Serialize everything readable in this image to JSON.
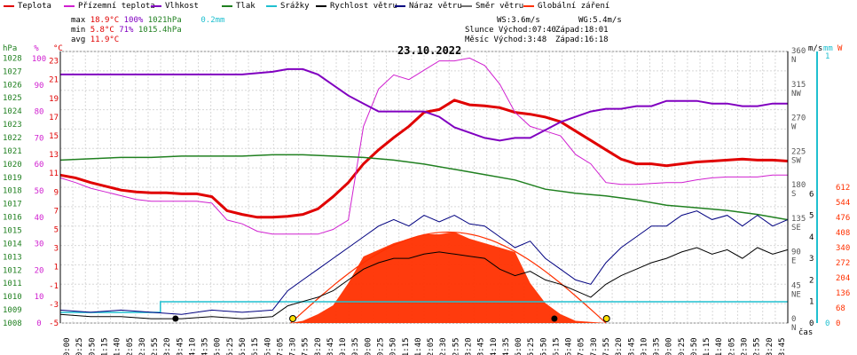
{
  "legend": [
    {
      "label": "Teplota",
      "color": "#e00000"
    },
    {
      "label": "Přízemní teplota",
      "color": "#d020d0"
    },
    {
      "label": "Vlhkost",
      "color": "#8000c0"
    },
    {
      "label": "Tlak",
      "color": "#208020"
    },
    {
      "label": "Srážky",
      "color": "#20c0d0"
    },
    {
      "label": "Rychlost větru",
      "color": "#000000"
    },
    {
      "label": "Náraz větru",
      "color": "#000080"
    },
    {
      "label": "Směr větru",
      "color": "#707070"
    },
    {
      "label": "Globální záření",
      "color": "#ff3000"
    }
  ],
  "stats": {
    "max_label": "max",
    "max_temp": "18.9°C",
    "max_hum": "100%",
    "max_press": "1021hPa",
    "max_rain": "0.2mm",
    "min_label": "min",
    "min_temp": "5.8°C",
    "min_hum": "71%",
    "min_press": "1015.4hPa",
    "avg_label": "avg",
    "avg_temp": "11.9°C",
    "ws": "WS:3.6m/s",
    "wg": "WG:5.4m/s",
    "sun_rise": "Slunce Východ:07:40",
    "sun_set": "Západ:18:01",
    "moon_rise": "Měsíc  Východ:3:48",
    "moon_set": "Západ:16:18"
  },
  "date_title": "23.10.2022",
  "axes": {
    "hpa_unit": "hPa",
    "pct_unit": "%",
    "c_unit": "°C",
    "ms_unit": "m/s",
    "mm_unit": "mm",
    "w_unit": "W",
    "time_unit": "čas",
    "hpa_ticks": [
      "1008",
      "1009",
      "1010",
      "1011",
      "1012",
      "1013",
      "1014",
      "1015",
      "1016",
      "1017",
      "1018",
      "1019",
      "1020",
      "1021",
      "1022",
      "1023",
      "1024",
      "1025",
      "1026",
      "1027",
      "1028"
    ],
    "pct_ticks": [
      "0",
      "10",
      "20",
      "30",
      "40",
      "50",
      "60",
      "70",
      "80",
      "90",
      "100"
    ],
    "c_ticks": [
      "-5",
      "-3",
      "-1",
      "1",
      "3",
      "5",
      "7",
      "9",
      "11",
      "13",
      "15",
      "17",
      "19",
      "21",
      "23"
    ],
    "c_ticks_extra": [
      "-1"
    ],
    "dir_ticks": [
      {
        "deg": "0",
        "name": "N"
      },
      {
        "deg": "45",
        "name": "NE"
      },
      {
        "deg": "90",
        "name": "E"
      },
      {
        "deg": "135",
        "name": "SE"
      },
      {
        "deg": "180",
        "name": "S"
      },
      {
        "deg": "225",
        "name": "SW"
      },
      {
        "deg": "270",
        "name": "W"
      },
      {
        "deg": "315",
        "name": "NW"
      },
      {
        "deg": "360",
        "name": "N"
      }
    ],
    "ms_ticks": [
      "0",
      "1",
      "2",
      "3",
      "4",
      "5",
      "6"
    ],
    "mm_ticks": [
      "0",
      "1"
    ],
    "w_ticks": [
      "0",
      "68",
      "136",
      "204",
      "272",
      "340",
      "408",
      "476",
      "544",
      "612"
    ],
    "time_ticks": [
      "00:00",
      "00:25",
      "00:50",
      "01:15",
      "01:40",
      "02:05",
      "02:30",
      "02:55",
      "03:20",
      "03:45",
      "04:10",
      "04:35",
      "05:00",
      "05:25",
      "05:50",
      "06:15",
      "06:40",
      "07:05",
      "07:30",
      "07:55",
      "08:20",
      "08:45",
      "09:10",
      "09:35",
      "10:00",
      "10:25",
      "10:50",
      "11:15",
      "11:40",
      "12:05",
      "12:30",
      "12:55",
      "13:20",
      "13:45",
      "14:10",
      "14:35",
      "15:00",
      "15:25",
      "15:50",
      "16:15",
      "16:40",
      "17:05",
      "17:30",
      "17:55",
      "18:20",
      "18:45",
      "19:10",
      "19:35",
      "20:00",
      "20:25",
      "20:50",
      "21:15",
      "21:40",
      "22:05",
      "22:30",
      "22:55",
      "23:20",
      "23:45"
    ]
  },
  "chart_data": {
    "type": "line",
    "title": "23.10.2022",
    "x_range_hours": [
      0,
      24
    ],
    "series": [
      {
        "name": "Teplota",
        "unit": "°C",
        "color": "#e00000",
        "x": [
          0,
          0.5,
          1,
          1.5,
          2,
          2.5,
          3,
          3.5,
          4,
          4.5,
          5,
          5.5,
          6,
          6.5,
          7,
          7.5,
          8,
          8.5,
          9,
          9.5,
          10,
          10.5,
          11,
          11.5,
          12,
          12.5,
          13,
          13.5,
          14,
          14.5,
          15,
          15.5,
          16,
          16.5,
          17,
          17.5,
          18,
          18.5,
          19,
          19.5,
          20,
          20.5,
          21,
          21.5,
          22,
          22.5,
          23,
          23.5,
          24
        ],
        "y": [
          10.8,
          10.5,
          10.0,
          9.6,
          9.2,
          9.0,
          8.9,
          8.9,
          8.8,
          8.8,
          8.5,
          7.0,
          6.6,
          6.3,
          6.3,
          6.4,
          6.6,
          7.2,
          8.5,
          10.0,
          12.0,
          13.5,
          14.8,
          16.0,
          17.5,
          17.8,
          18.8,
          18.3,
          18.2,
          18.0,
          17.5,
          17.3,
          17.0,
          16.5,
          15.5,
          14.5,
          13.5,
          12.5,
          12.0,
          12.0,
          11.8,
          12.0,
          12.2,
          12.3,
          12.4,
          12.5,
          12.4,
          12.4,
          12.3
        ]
      },
      {
        "name": "Přízemní teplota",
        "unit": "°C",
        "color": "#d020d0",
        "x": [
          0,
          0.5,
          1,
          1.5,
          2,
          2.5,
          3,
          3.5,
          4,
          4.5,
          5,
          5.5,
          6,
          6.5,
          7,
          7.5,
          8,
          8.5,
          9,
          9.5,
          10,
          10.5,
          11,
          11.5,
          12,
          12.5,
          13,
          13.5,
          14,
          14.5,
          15,
          15.5,
          16,
          16.5,
          17,
          17.5,
          18,
          18.5,
          19,
          19.5,
          20,
          20.5,
          21,
          21.5,
          22,
          22.5,
          23,
          23.5,
          24
        ],
        "y": [
          10.5,
          10.0,
          9.4,
          9.0,
          8.6,
          8.2,
          8.0,
          8.0,
          8.0,
          8.0,
          7.8,
          6.0,
          5.6,
          4.8,
          4.5,
          4.5,
          4.5,
          4.5,
          5.0,
          6.0,
          16.0,
          20.0,
          21.5,
          21.0,
          22.0,
          23.0,
          23.0,
          23.3,
          22.5,
          20.5,
          17.5,
          16.0,
          15.5,
          15.0,
          13.0,
          12.0,
          10.0,
          9.8,
          9.8,
          9.9,
          10.0,
          10.0,
          10.3,
          10.5,
          10.6,
          10.6,
          10.6,
          10.8,
          10.8
        ]
      },
      {
        "name": "Vlhkost",
        "unit": "%",
        "color": "#8000c0",
        "x": [
          0,
          1,
          2,
          3,
          4,
          5,
          6,
          7,
          7.5,
          8,
          8.5,
          9,
          9.5,
          10,
          10.5,
          11,
          11.5,
          12,
          12.5,
          13,
          13.5,
          14,
          14.5,
          15,
          15.5,
          16,
          16.5,
          17,
          17.5,
          18,
          18.5,
          19,
          19.5,
          20,
          20.5,
          21,
          21.5,
          22,
          22.5,
          23,
          23.5,
          24
        ],
        "y": [
          94,
          94,
          94,
          94,
          94,
          94,
          94,
          95,
          96,
          96,
          94,
          90,
          86,
          83,
          80,
          80,
          80,
          80,
          78,
          74,
          72,
          70,
          69,
          70,
          70,
          73,
          76,
          78,
          80,
          81,
          81,
          82,
          82,
          84,
          84,
          84,
          83,
          83,
          82,
          82,
          83,
          83
        ]
      },
      {
        "name": "Tlak",
        "unit": "hPa",
        "color": "#208020",
        "x": [
          0,
          1,
          2,
          3,
          4,
          5,
          6,
          7,
          8,
          9,
          10,
          11,
          12,
          13,
          14,
          15,
          16,
          17,
          18,
          19,
          20,
          21,
          22,
          23,
          24
        ],
        "y": [
          1020.3,
          1020.4,
          1020.5,
          1020.5,
          1020.6,
          1020.6,
          1020.6,
          1020.7,
          1020.7,
          1020.6,
          1020.5,
          1020.3,
          1020.0,
          1019.6,
          1019.2,
          1018.8,
          1018.1,
          1017.8,
          1017.6,
          1017.3,
          1016.9,
          1016.7,
          1016.5,
          1016.2,
          1015.8
        ]
      },
      {
        "name": "Srážky",
        "unit": "mm",
        "color": "#20c0d0",
        "x": [
          0,
          3.3,
          3.3,
          24
        ],
        "y": [
          0.1,
          0.1,
          0.2,
          0.2
        ]
      },
      {
        "name": "Rychlost větru",
        "unit": "m/s",
        "color": "#000000",
        "x": [
          0,
          1,
          2,
          3,
          4,
          5,
          6,
          7,
          7.5,
          8,
          8.5,
          9,
          9.5,
          10,
          10.5,
          11,
          11.5,
          12,
          12.5,
          13,
          13.5,
          14,
          14.5,
          15,
          15.5,
          16,
          16.5,
          17,
          17.5,
          18,
          18.5,
          19,
          19.5,
          20,
          20.5,
          21,
          21.5,
          22,
          22.5,
          23,
          23.5,
          24
        ],
        "y": [
          0.4,
          0.3,
          0.3,
          0.2,
          0.2,
          0.3,
          0.2,
          0.3,
          0.8,
          1.0,
          1.2,
          1.5,
          2.0,
          2.5,
          2.8,
          3.0,
          3.0,
          3.2,
          3.3,
          3.2,
          3.1,
          3.0,
          2.5,
          2.2,
          2.4,
          2.0,
          1.8,
          1.5,
          1.2,
          1.8,
          2.2,
          2.5,
          2.8,
          3.0,
          3.3,
          3.5,
          3.2,
          3.4,
          3.0,
          3.5,
          3.2,
          3.4
        ]
      },
      {
        "name": "Náraz větru",
        "unit": "m/s",
        "color": "#000080",
        "x": [
          0,
          1,
          2,
          3,
          4,
          5,
          6,
          7,
          7.5,
          8,
          8.5,
          9,
          9.5,
          10,
          10.5,
          11,
          11.5,
          12,
          12.5,
          13,
          13.5,
          14,
          14.5,
          15,
          15.5,
          16,
          16.5,
          17,
          17.5,
          18,
          18.5,
          19,
          19.5,
          20,
          20.5,
          21,
          21.5,
          22,
          22.5,
          23,
          23.5,
          24
        ],
        "y": [
          0.6,
          0.5,
          0.6,
          0.5,
          0.4,
          0.6,
          0.5,
          0.6,
          1.5,
          2.0,
          2.5,
          3.0,
          3.5,
          4.0,
          4.5,
          4.8,
          4.5,
          5.0,
          4.7,
          5.0,
          4.6,
          4.5,
          4.0,
          3.5,
          3.8,
          3.0,
          2.5,
          2.0,
          1.8,
          2.8,
          3.5,
          4.0,
          4.5,
          4.5,
          5.0,
          5.2,
          4.8,
          5.0,
          4.5,
          5.0,
          4.5,
          4.8
        ]
      },
      {
        "name": "Globální záření",
        "unit": "W",
        "color": "#ff3000",
        "x": [
          0,
          7.6,
          8,
          8.5,
          9,
          9.5,
          10,
          10.5,
          11,
          11.5,
          12,
          12.5,
          13,
          13.5,
          14,
          14.5,
          15,
          15.5,
          16,
          16.5,
          17,
          17.5,
          18,
          24
        ],
        "y": [
          0,
          0,
          10,
          40,
          80,
          180,
          300,
          330,
          360,
          380,
          400,
          400,
          410,
          380,
          360,
          340,
          320,
          180,
          90,
          40,
          10,
          5,
          0,
          0
        ]
      }
    ]
  }
}
